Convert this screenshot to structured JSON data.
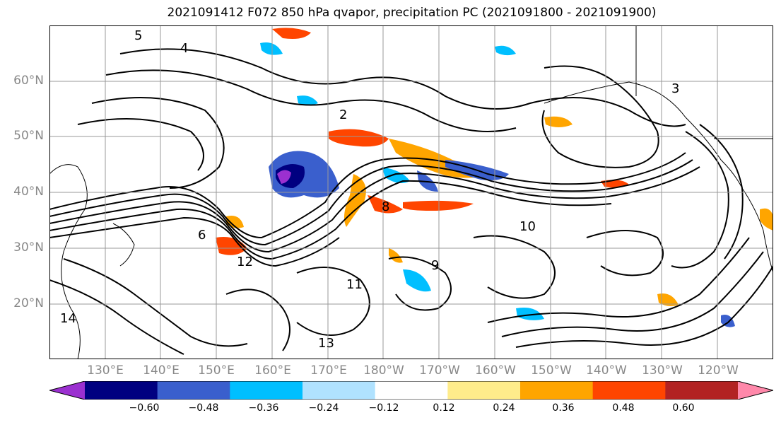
{
  "title": "2021091412 F072 850 hPa qvapor, precipitation PC (2021091800 - 2021091900)",
  "lat_labels": [
    "60°N",
    "50°N",
    "40°N",
    "30°N",
    "20°N"
  ],
  "lon_labels": [
    "130°E",
    "140°E",
    "150°E",
    "160°E",
    "170°E",
    "180°W",
    "170°W",
    "160°W",
    "150°W",
    "140°W",
    "130°W",
    "120°W"
  ],
  "contour_labels": [
    "5",
    "4",
    "3",
    "2",
    "6",
    "8",
    "9",
    "10",
    "11",
    "12",
    "13",
    "14"
  ],
  "colorbar": {
    "colors": [
      "#9b30d0",
      "#000080",
      "#3a5fcd",
      "#00bfff",
      "#b0e2ff",
      "#ffffff",
      "#ffec8b",
      "#ffa500",
      "#ff4500",
      "#b22222",
      "#ff88aa"
    ],
    "tick_labels": [
      "−0.60",
      "−0.48",
      "−0.36",
      "−0.24",
      "−0.12",
      "0.12",
      "0.24",
      "0.36",
      "0.48",
      "0.60"
    ]
  }
}
